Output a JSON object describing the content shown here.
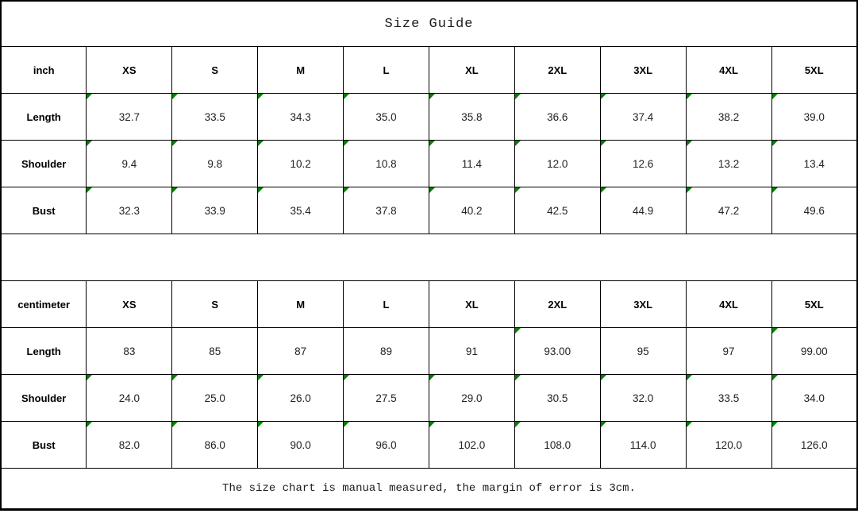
{
  "title": "Size Guide",
  "footer_note": "The size chart is manual measured, the margin of error is 3cm.",
  "colors": {
    "flag_green": "#008000",
    "grid_black": "#000000"
  },
  "tables": [
    {
      "unit_label": "inch",
      "size_headers": [
        "XS",
        "S",
        "M",
        "L",
        "XL",
        "2XL",
        "3XL",
        "4XL",
        "5XL"
      ],
      "rows": [
        {
          "label": "Length",
          "values": [
            "32.7",
            "33.5",
            "34.3",
            "35.0",
            "35.8",
            "36.6",
            "37.4",
            "38.2",
            "39.0"
          ],
          "flags": [
            1,
            1,
            1,
            1,
            1,
            1,
            1,
            1,
            1
          ]
        },
        {
          "label": "Shoulder",
          "values": [
            "9.4",
            "9.8",
            "10.2",
            "10.8",
            "11.4",
            "12.0",
            "12.6",
            "13.2",
            "13.4"
          ],
          "flags": [
            1,
            1,
            1,
            1,
            1,
            1,
            1,
            1,
            1
          ]
        },
        {
          "label": "Bust",
          "values": [
            "32.3",
            "33.9",
            "35.4",
            "37.8",
            "40.2",
            "42.5",
            "44.9",
            "47.2",
            "49.6"
          ],
          "flags": [
            1,
            1,
            1,
            1,
            1,
            1,
            1,
            1,
            1
          ]
        }
      ]
    },
    {
      "unit_label": "centimeter",
      "size_headers": [
        "XS",
        "S",
        "M",
        "L",
        "XL",
        "2XL",
        "3XL",
        "4XL",
        "5XL"
      ],
      "rows": [
        {
          "label": "Length",
          "values": [
            "83",
            "85",
            "87",
            "89",
            "91",
            "93.00",
            "95",
            "97",
            "99.00"
          ],
          "flags": [
            0,
            0,
            0,
            0,
            0,
            1,
            0,
            0,
            1
          ]
        },
        {
          "label": "Shoulder",
          "values": [
            "24.0",
            "25.0",
            "26.0",
            "27.5",
            "29.0",
            "30.5",
            "32.0",
            "33.5",
            "34.0"
          ],
          "flags": [
            1,
            1,
            1,
            1,
            1,
            1,
            1,
            1,
            1
          ]
        },
        {
          "label": "Bust",
          "values": [
            "82.0",
            "86.0",
            "90.0",
            "96.0",
            "102.0",
            "108.0",
            "114.0",
            "120.0",
            "126.0"
          ],
          "flags": [
            1,
            1,
            1,
            1,
            1,
            1,
            1,
            1,
            1
          ]
        }
      ]
    }
  ]
}
